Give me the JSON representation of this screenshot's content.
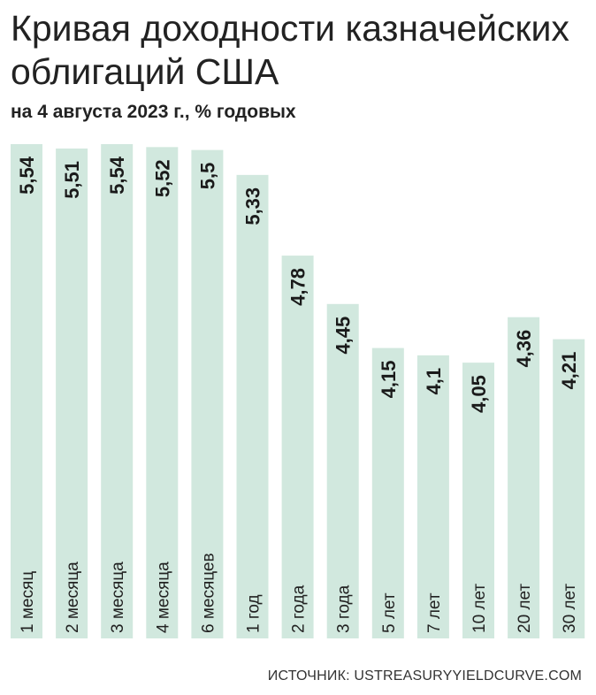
{
  "title": "Кривая доходности казначейских облигаций США",
  "subtitle": "на 4 августа 2023 г., % годовых",
  "source": "ИСТОЧНИК: USTREASURYYIELDCURVE.COM",
  "colors": {
    "bar": "#d1e8de",
    "text": "#1a1a1a"
  },
  "chart_data": {
    "type": "bar",
    "orientation": "vertical",
    "categories": [
      "1 месяц",
      "2 месяца",
      "3 месяца",
      "4 месяца",
      "6 месяцев",
      "1 год",
      "2 года",
      "3 года",
      "5 лет",
      "7 лет",
      "10 лет",
      "20 лет",
      "30 лет"
    ],
    "values": [
      5.54,
      5.51,
      5.54,
      5.52,
      5.5,
      5.33,
      4.78,
      4.45,
      4.15,
      4.1,
      4.05,
      4.36,
      4.21
    ],
    "value_labels": [
      "5,54",
      "5,51",
      "5,54",
      "5,52",
      "5,5",
      "5,33",
      "4,78",
      "4,45",
      "4,15",
      "4,1",
      "4,05",
      "4,36",
      "4,21"
    ],
    "xlabel": "",
    "ylabel": "",
    "grid": false,
    "legend": "none"
  }
}
